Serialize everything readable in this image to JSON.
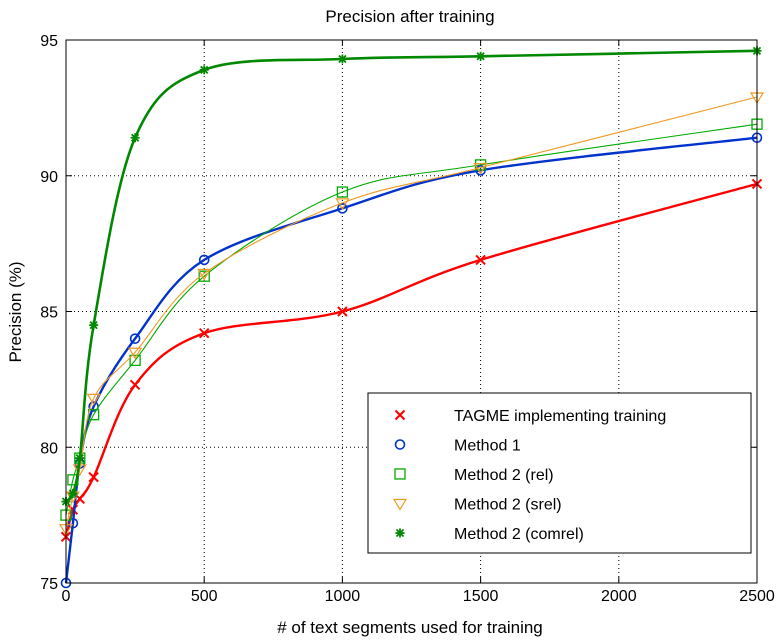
{
  "chart_data": {
    "type": "line",
    "title": "Precision after training",
    "xlabel": "# of text segments used for training",
    "ylabel": "Precision (%)",
    "xlim": [
      0,
      2500
    ],
    "ylim": [
      75,
      95
    ],
    "xticks": [
      0,
      500,
      1000,
      1500,
      2000,
      2500
    ],
    "yticks": [
      75,
      80,
      85,
      90,
      95
    ],
    "grid": true,
    "legend_position": "bottom-right",
    "series": [
      {
        "name": "TAGME implementing training",
        "color": "#ff0000",
        "marker": "x",
        "x": [
          0,
          25,
          50,
          100,
          250,
          500,
          1000,
          1500,
          2500
        ],
        "y": [
          76.7,
          77.7,
          78.1,
          78.9,
          82.3,
          84.2,
          85.0,
          86.9,
          89.7
        ]
      },
      {
        "name": "Method 1",
        "color": "#0033cc",
        "marker": "circle",
        "x": [
          0,
          25,
          50,
          100,
          250,
          500,
          1000,
          1500,
          2500
        ],
        "y": [
          75.0,
          77.2,
          79.4,
          81.5,
          84.0,
          86.9,
          88.8,
          90.2,
          91.4
        ]
      },
      {
        "name": "Method 2 (rel)",
        "color": "#00aa00",
        "marker": "square",
        "x": [
          0,
          25,
          50,
          100,
          250,
          500,
          1000,
          1500,
          2500
        ],
        "y": [
          77.5,
          78.8,
          79.6,
          81.2,
          83.2,
          86.3,
          89.4,
          90.4,
          91.9
        ]
      },
      {
        "name": "Method 2 (srel)",
        "color": "#ee9922",
        "marker": "triangle-down",
        "x": [
          0,
          25,
          50,
          100,
          250,
          500,
          1000,
          1500,
          2500
        ],
        "y": [
          77.0,
          78.2,
          79.2,
          81.8,
          83.5,
          86.4,
          89.0,
          90.3,
          92.9
        ]
      },
      {
        "name": "Method 2 (comrel)",
        "color": "#008800",
        "marker": "star",
        "x": [
          0,
          25,
          50,
          100,
          250,
          500,
          1000,
          1500,
          2500
        ],
        "y": [
          78.0,
          78.3,
          79.6,
          84.5,
          91.4,
          93.9,
          94.3,
          94.4,
          94.6
        ]
      }
    ]
  }
}
